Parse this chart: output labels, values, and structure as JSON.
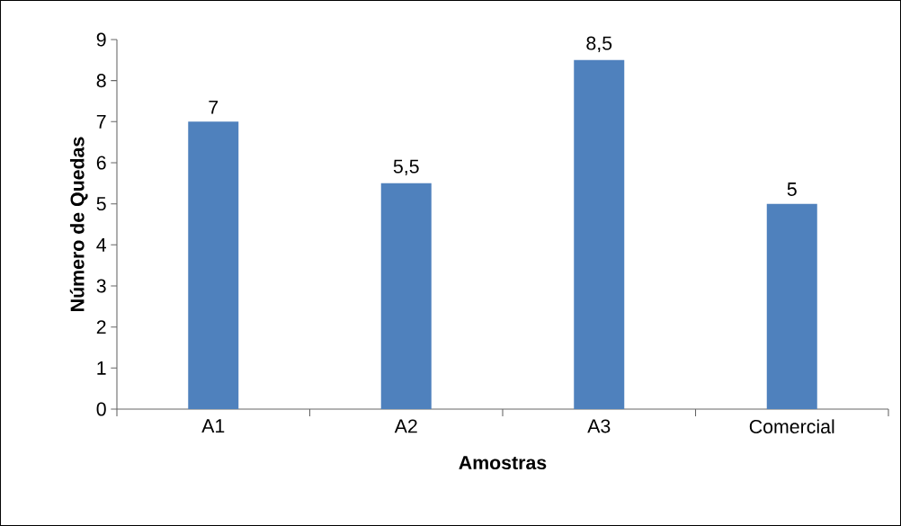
{
  "chart_data": {
    "type": "bar",
    "xlabel": "Amostras",
    "ylabel": "Número de Quedas",
    "categories": [
      "A1",
      "A2",
      "A3",
      "Comercial"
    ],
    "values": [
      7,
      5.5,
      8.5,
      5
    ],
    "value_labels": [
      "7",
      "5,5",
      "8,5",
      "5"
    ],
    "color": "#4f81bd",
    "ylim": [
      0,
      9
    ],
    "yticks": [
      0,
      1,
      2,
      3,
      4,
      5,
      6,
      7,
      8,
      9
    ]
  }
}
